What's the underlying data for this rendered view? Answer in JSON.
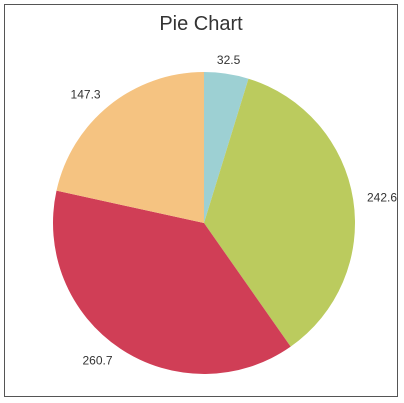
{
  "chart_data": {
    "type": "pie",
    "title": "Pie Chart",
    "slices": [
      {
        "label": "32.5",
        "value": 32.5,
        "color": "#9dd0d3"
      },
      {
        "label": "242.6",
        "value": 242.6,
        "color": "#bbcb5e"
      },
      {
        "label": "260.7",
        "value": 260.7,
        "color": "#d03e56"
      },
      {
        "label": "147.3",
        "value": 147.3,
        "color": "#f5c381"
      }
    ]
  }
}
